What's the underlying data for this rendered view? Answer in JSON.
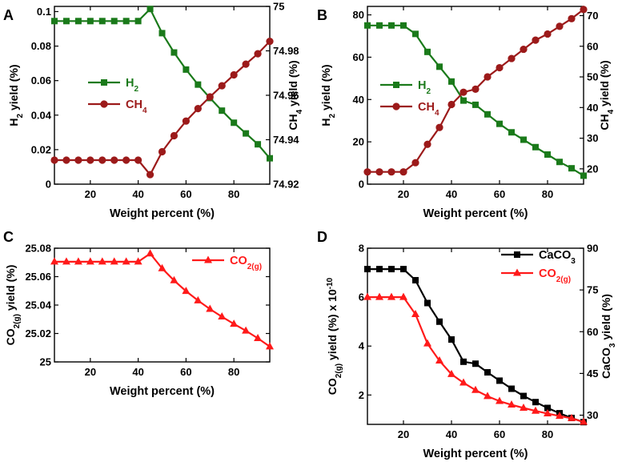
{
  "chart_data": [
    {
      "panel": "A",
      "type": "line",
      "xlabel": "Weight percent (%)",
      "ylabel_left": "H2 yield (%)",
      "ylabel_right": "CH4 yield (%)",
      "xlim": [
        5,
        95
      ],
      "ylim_left": [
        0,
        0.103
      ],
      "ylim_right": [
        74.92,
        75
      ],
      "xticks": [
        20,
        40,
        60,
        80
      ],
      "yticks_left": [
        0,
        0.02,
        0.04,
        0.06,
        0.08,
        0.1
      ],
      "ytick_labels_left": [
        "0",
        "0.02",
        "0.04",
        "0.06",
        "0.08",
        "0.1"
      ],
      "yticks_right": [
        74.92,
        74.94,
        74.96,
        74.98,
        75
      ],
      "ytick_labels_right": [
        "74.92",
        "74.94",
        "74.96",
        "74.98",
        "75"
      ],
      "x": [
        5,
        10,
        15,
        20,
        25,
        30,
        35,
        40,
        45,
        50,
        55,
        60,
        65,
        70,
        75,
        80,
        85,
        90,
        95
      ],
      "series": [
        {
          "name": "H2",
          "legend_main": "H",
          "legend_sub": "2",
          "axis": "left",
          "color": "#1a7a1a",
          "marker": "square",
          "values": [
            0.0945,
            0.0945,
            0.0945,
            0.0945,
            0.0945,
            0.0945,
            0.0945,
            0.0945,
            0.1015,
            0.0875,
            0.0763,
            0.0664,
            0.0577,
            0.0499,
            0.0426,
            0.0356,
            0.0294,
            0.0231,
            0.015
          ]
        },
        {
          "name": "CH4",
          "legend_main": "CH",
          "legend_sub": "4",
          "axis": "right",
          "color": "#9c1a1a",
          "marker": "circle",
          "values": [
            74.9308,
            74.9308,
            74.9308,
            74.9308,
            74.9308,
            74.9308,
            74.9308,
            74.9308,
            74.9243,
            74.9346,
            74.9418,
            74.9484,
            74.954,
            74.9593,
            74.9643,
            74.9692,
            74.974,
            74.9787,
            74.9843
          ]
        }
      ]
    },
    {
      "panel": "B",
      "type": "line",
      "xlabel": "Weight percent (%)",
      "ylabel_left": "H2 yield (%)",
      "ylabel_right": "CH4 yield (%)",
      "xlim": [
        5,
        95
      ],
      "ylim_left": [
        0,
        84
      ],
      "ylim_right": [
        15,
        73
      ],
      "xticks": [
        20,
        40,
        60,
        80
      ],
      "yticks_left": [
        0,
        20,
        40,
        60,
        80
      ],
      "ytick_labels_left": [
        "0",
        "20",
        "40",
        "60",
        "80"
      ],
      "yticks_right": [
        20,
        30,
        40,
        50,
        60,
        70
      ],
      "ytick_labels_right": [
        "20",
        "30",
        "40",
        "50",
        "60",
        "70"
      ],
      "x": [
        5,
        10,
        15,
        20,
        25,
        30,
        35,
        40,
        45,
        50,
        55,
        60,
        65,
        70,
        75,
        80,
        85,
        90,
        95
      ],
      "series": [
        {
          "name": "H2",
          "legend_main": "H",
          "legend_sub": "2",
          "axis": "left",
          "color": "#1a7a1a",
          "marker": "square",
          "values": [
            75,
            75,
            75,
            75,
            71,
            62.5,
            55.5,
            48.5,
            39.5,
            37.5,
            33,
            28.5,
            24.5,
            21,
            17.5,
            14,
            10.5,
            7.5,
            4
          ]
        },
        {
          "name": "CH4",
          "legend_main": "CH",
          "legend_sub": "4",
          "axis": "right",
          "color": "#9c1a1a",
          "marker": "circle",
          "values": [
            19,
            19,
            19,
            19,
            22,
            28,
            33.5,
            41,
            45,
            46,
            50,
            53,
            56,
            59,
            62,
            64,
            66.5,
            69,
            72
          ]
        }
      ]
    },
    {
      "panel": "C",
      "type": "line",
      "xlabel": "Weight percent (%)",
      "ylabel_left": "CO2(g) yield (%)",
      "xlim": [
        5,
        95
      ],
      "ylim_left": [
        25,
        25.08
      ],
      "xticks": [
        20,
        40,
        60,
        80
      ],
      "yticks_left": [
        25,
        25.02,
        25.04,
        25.06,
        25.08
      ],
      "ytick_labels_left": [
        "25",
        "25.02",
        "25.04",
        "25.06",
        "25.08"
      ],
      "x": [
        5,
        10,
        15,
        20,
        25,
        30,
        35,
        40,
        45,
        50,
        55,
        60,
        65,
        70,
        75,
        80,
        85,
        90,
        95
      ],
      "series": [
        {
          "name": "CO2(g)",
          "legend_main": "CO",
          "legend_sub": "2(g)",
          "axis": "left",
          "color": "#ff1a1a",
          "marker": "triangle",
          "values": [
            25.0705,
            25.0705,
            25.0705,
            25.0705,
            25.0705,
            25.0705,
            25.0705,
            25.0705,
            25.0762,
            25.0658,
            25.0573,
            25.0498,
            25.0432,
            25.0372,
            25.0318,
            25.0267,
            25.0219,
            25.0166,
            25.0108
          ]
        }
      ]
    },
    {
      "panel": "D",
      "type": "line",
      "xlabel": "Weight percent (%)",
      "ylabel_left": "CO2(g) yield (%) x 10-10",
      "ylabel_right": "CaCO3 yield (%)",
      "xlim": [
        5,
        95
      ],
      "ylim_left": [
        0.8,
        8
      ],
      "ylim_right": [
        26.7,
        90
      ],
      "xticks": [
        20,
        40,
        60,
        80
      ],
      "yticks_left": [
        2,
        4,
        6,
        8
      ],
      "ytick_labels_left": [
        "2",
        "4",
        "6",
        "8"
      ],
      "yticks_right": [
        30,
        45,
        60,
        75,
        90
      ],
      "ytick_labels_right": [
        "30",
        "45",
        "60",
        "75",
        "90"
      ],
      "x": [
        5,
        10,
        15,
        20,
        25,
        30,
        35,
        40,
        45,
        50,
        55,
        60,
        65,
        70,
        75,
        80,
        85,
        90,
        95
      ],
      "series": [
        {
          "name": "CaCO3",
          "legend_main": "CaCO",
          "legend_sub": "3",
          "axis": "right",
          "color": "#000000",
          "marker": "square",
          "values": [
            82.5,
            82.5,
            82.5,
            82.5,
            78.5,
            70.3,
            63.6,
            57.2,
            49.2,
            48.5,
            45.4,
            42.4,
            39.5,
            36.9,
            34.7,
            32.6,
            30.7,
            29.0,
            27.5
          ]
        },
        {
          "name": "CO2(g)",
          "legend_main": "CO",
          "legend_sub": "2(g)",
          "axis": "left",
          "color": "#ff1a1a",
          "marker": "triangle",
          "values": [
            6.0,
            6.0,
            6.0,
            6.0,
            5.3,
            4.1,
            3.4,
            2.85,
            2.5,
            2.2,
            1.95,
            1.75,
            1.6,
            1.47,
            1.35,
            1.24,
            1.14,
            1.05,
            0.9
          ]
        }
      ]
    }
  ]
}
